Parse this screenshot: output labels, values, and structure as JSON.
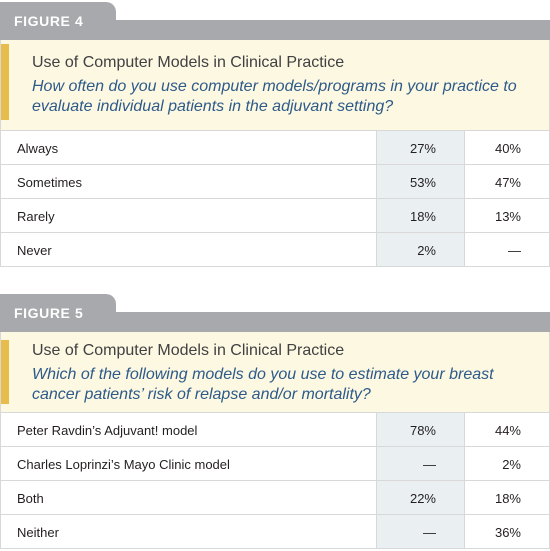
{
  "figure4": {
    "tab_label": "FIGURE 4",
    "title": "Use of Computer Models in Clinical Practice",
    "question": "How often do you use computer models/programs in your practice to evaluate individual patients in the adjuvant setting?",
    "rows": [
      {
        "label": "Always",
        "col_a": "27%",
        "col_b": "40%"
      },
      {
        "label": "Sometimes",
        "col_a": "53%",
        "col_b": "47%"
      },
      {
        "label": "Rarely",
        "col_a": "18%",
        "col_b": "13%"
      },
      {
        "label": "Never",
        "col_a": "2%",
        "col_b": "—"
      }
    ]
  },
  "figure5": {
    "tab_label": "FIGURE 5",
    "title": "Use of Computer Models in Clinical Practice",
    "question": "Which of the following models do you use to estimate your breast cancer patients’ risk of relapse and/or mortality?",
    "rows": [
      {
        "label": "Peter Ravdin’s Adjuvant! model",
        "col_a": "78%",
        "col_b": "44%"
      },
      {
        "label": "Charles Loprinzi’s Mayo Clinic model",
        "col_a": "—",
        "col_b": "2%"
      },
      {
        "label": "Both",
        "col_a": "22%",
        "col_b": "18%"
      },
      {
        "label": "Neither",
        "col_a": "—",
        "col_b": "36%"
      }
    ]
  },
  "colors": {
    "tab_gray": "#a7a9ac",
    "header_bg": "#fcf8e2",
    "accent_gold": "#e8bc4a",
    "question_blue": "#2e5a8a",
    "shaded_column": "#eaeff2"
  }
}
